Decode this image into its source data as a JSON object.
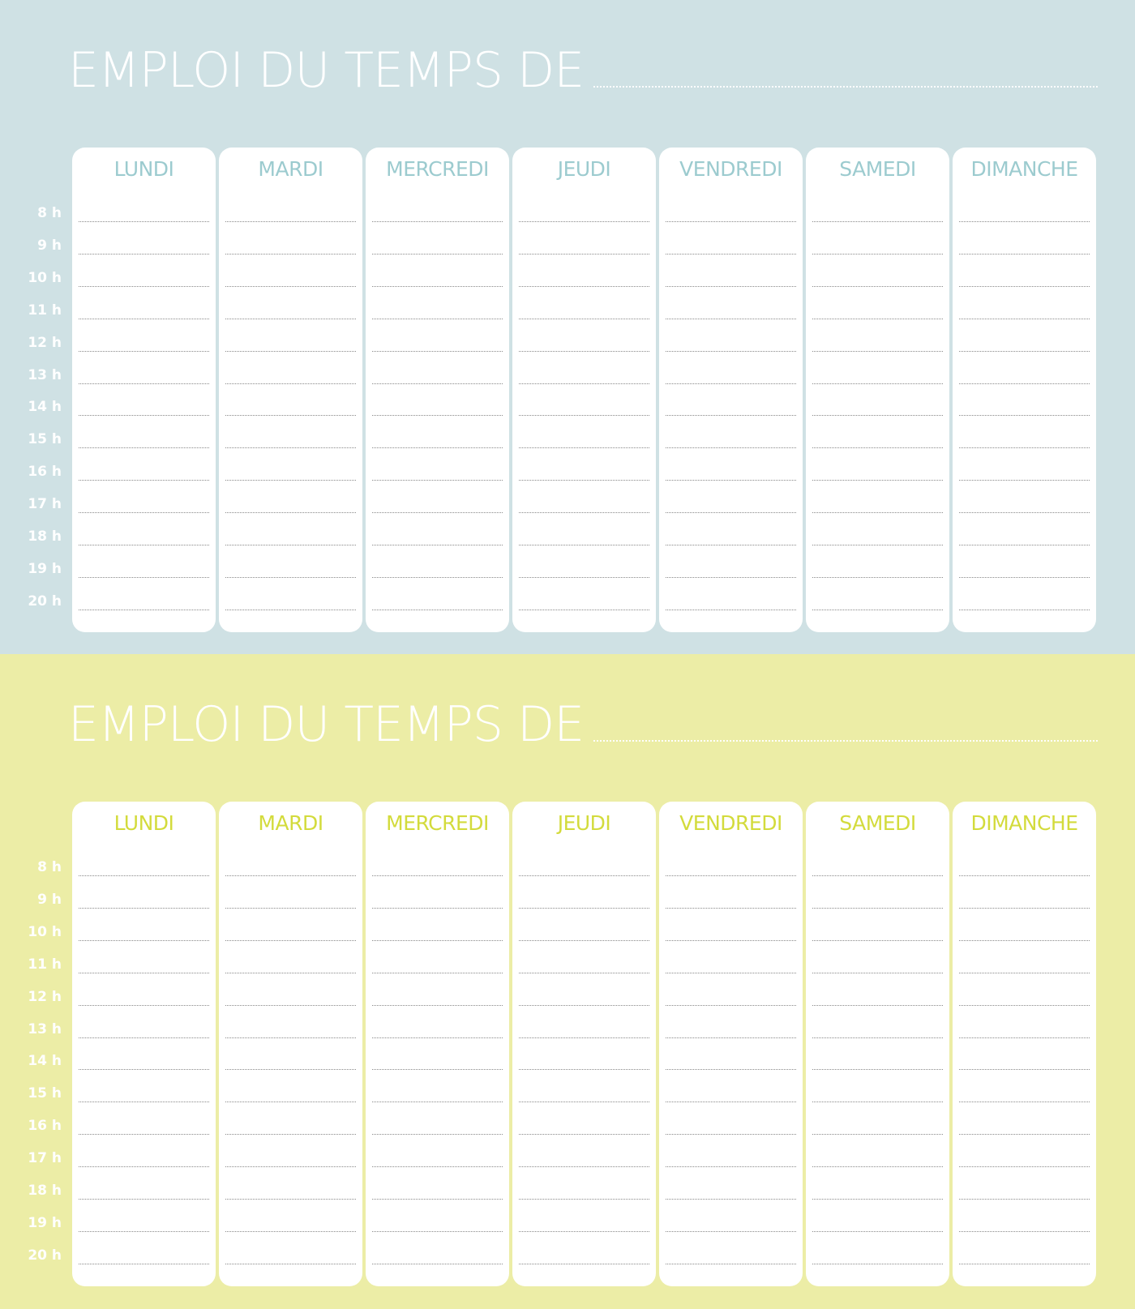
{
  "days": [
    "LUNDI",
    "MARDI",
    "MERCREDI",
    "JEUDI",
    "VENDREDI",
    "SAMEDI",
    "DIMANCHE"
  ],
  "hours": [
    "8 h",
    "9 h",
    "10 h",
    "11 h",
    "12 h",
    "13 h",
    "14 h",
    "15 h",
    "16 h",
    "17 h",
    "18 h",
    "19 h",
    "20 h"
  ],
  "schedules": [
    {
      "title": "EMPLOI DU TEMPS DE",
      "background": "#cfe1e4",
      "accent": "#9ccbcf"
    },
    {
      "title": "EMPLOI DU TEMPS DE",
      "background": "#eceda6",
      "accent": "#d3db3c"
    }
  ]
}
